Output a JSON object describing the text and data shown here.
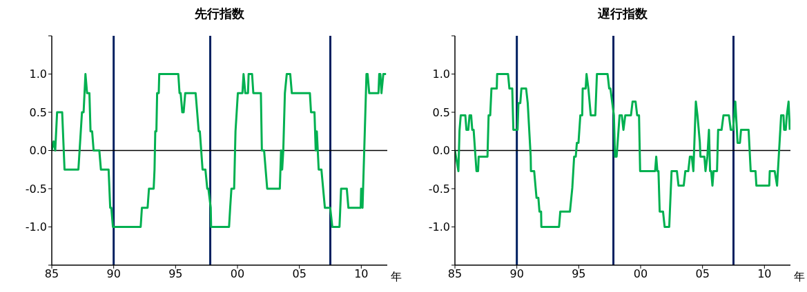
{
  "chart_data": [
    {
      "type": "line",
      "title": "先行指数",
      "xlabel": "年",
      "xlim": [
        1985,
        2012.1
      ],
      "ylim": [
        -1.5,
        1.5
      ],
      "xticks": [
        {
          "value": 1985,
          "label": "85"
        },
        {
          "value": 1990,
          "label": "90"
        },
        {
          "value": 1995,
          "label": "95"
        },
        {
          "value": 2000,
          "label": "00"
        },
        {
          "value": 2005,
          "label": "05"
        },
        {
          "value": 2010,
          "label": "10"
        }
      ],
      "yticks": [
        {
          "value": -1.5,
          "label": null
        },
        {
          "value": -1,
          "label": "-1.0"
        },
        {
          "value": -0.5,
          "label": "-0.5"
        },
        {
          "value": 0,
          "label": "0.0"
        },
        {
          "value": 0.5,
          "label": "0.5"
        },
        {
          "value": 1,
          "label": "1.0"
        },
        {
          "value": 1.5,
          "label": null
        }
      ],
      "marker": "none",
      "line_style": "solid",
      "ref_lines": [
        {
          "axis": "y",
          "value": 0,
          "color": "#000000"
        },
        {
          "axis": "x",
          "value": 1990.0,
          "color": "#002060"
        },
        {
          "axis": "x",
          "value": 1997.8,
          "color": "#002060"
        },
        {
          "axis": "x",
          "value": 2007.5,
          "color": "#002060"
        }
      ],
      "series": [
        {
          "color": "#00b050",
          "x": [
            1985.0,
            1985.15,
            1985.28,
            1985.43,
            1985.84,
            1986.03,
            1987.15,
            1987.44,
            1987.57,
            1987.72,
            1987.85,
            1988.04,
            1988.13,
            1988.26,
            1988.38,
            1988.84,
            1988.97,
            1989.59,
            1989.72,
            1989.81,
            1989.94,
            1992.18,
            1992.28,
            1992.74,
            1992.85,
            1993.23,
            1993.3,
            1993.36,
            1993.45,
            1993.51,
            1993.64,
            1993.68,
            1995.22,
            1995.32,
            1995.41,
            1995.54,
            1995.65,
            1995.78,
            1996.62,
            1996.87,
            1996.96,
            1997.18,
            1997.41,
            1997.56,
            1997.65,
            1997.84,
            1997.87,
            1999.32,
            1999.41,
            1999.51,
            1999.73,
            1999.84,
            2000.03,
            2000.4,
            2000.49,
            2000.63,
            2000.85,
            2000.9,
            2001.18,
            2001.28,
            2001.89,
            2001.97,
            2002.15,
            2002.4,
            2003.42,
            2003.52,
            2003.61,
            2003.7,
            2003.83,
            2003.98,
            2004.26,
            2004.39,
            2005.85,
            2005.94,
            2006.22,
            2006.32,
            2006.41,
            2006.56,
            2006.78,
            2007.06,
            2007.49,
            2007.66,
            2008.24,
            2008.37,
            2008.83,
            2008.96,
            2009.95,
            2009.99,
            2010.1,
            2010.33,
            2010.42,
            2010.51,
            2010.64,
            2011.39,
            2011.45,
            2011.54,
            2011.63,
            2011.78,
            2012.0
          ],
          "values": [
            0,
            0.12,
            0,
            0.5,
            0.5,
            -0.25,
            -0.25,
            0.5,
            0.5,
            1.0,
            0.75,
            0.75,
            0.25,
            0.25,
            0,
            0,
            -0.25,
            -0.25,
            -0.75,
            -0.75,
            -1.0,
            -1.0,
            -0.75,
            -0.75,
            -0.5,
            -0.5,
            -0.25,
            0.25,
            0.25,
            0.75,
            0.75,
            1.0,
            1.0,
            0.75,
            0.75,
            0.5,
            0.5,
            0.75,
            0.75,
            0.25,
            0.25,
            -0.25,
            -0.25,
            -0.5,
            -0.5,
            -0.75,
            -1.0,
            -1.0,
            -0.75,
            -0.5,
            -0.5,
            0.25,
            0.75,
            0.75,
            1.0,
            0.75,
            0.75,
            1.0,
            1.0,
            0.75,
            0.75,
            0,
            0,
            -0.5,
            -0.5,
            0,
            -0.25,
            0,
            0.75,
            1.0,
            1.0,
            0.75,
            0.75,
            0.5,
            0.5,
            0,
            0.25,
            -0.25,
            -0.25,
            -0.75,
            -0.75,
            -1.0,
            -1.0,
            -0.5,
            -0.5,
            -0.75,
            -0.75,
            -0.5,
            -0.75,
            0.5,
            1.0,
            1.0,
            0.75,
            0.75,
            1.0,
            1.0,
            0.75,
            1.0,
            1.0
          ]
        }
      ]
    },
    {
      "type": "line",
      "title": "遅行指数",
      "xlabel": "年",
      "xlim": [
        1985,
        2012.1
      ],
      "ylim": [
        -1.5,
        1.5
      ],
      "xticks": [
        {
          "value": 1985,
          "label": "85"
        },
        {
          "value": 1990,
          "label": "90"
        },
        {
          "value": 1995,
          "label": "95"
        },
        {
          "value": 2000,
          "label": "00"
        },
        {
          "value": 2005,
          "label": "05"
        },
        {
          "value": 2010,
          "label": "10"
        }
      ],
      "yticks": [
        {
          "value": -1.5,
          "label": null
        },
        {
          "value": -1,
          "label": "-1.0"
        },
        {
          "value": -0.5,
          "label": "-0.5"
        },
        {
          "value": 0,
          "label": "0.0"
        },
        {
          "value": 0.5,
          "label": "0.5"
        },
        {
          "value": 1,
          "label": "1.0"
        },
        {
          "value": 1.5,
          "label": null
        }
      ],
      "marker": "none",
      "line_style": "solid",
      "ref_lines": [
        {
          "axis": "y",
          "value": 0,
          "color": "#000000"
        },
        {
          "axis": "x",
          "value": 1990.0,
          "color": "#002060"
        },
        {
          "axis": "x",
          "value": 1997.8,
          "color": "#002060"
        },
        {
          "axis": "x",
          "value": 2007.5,
          "color": "#002060"
        }
      ],
      "series": [
        {
          "color": "#00b050",
          "x": [
            1985.0,
            1985.28,
            1985.37,
            1985.47,
            1985.84,
            1985.93,
            1986.08,
            1986.18,
            1986.31,
            1986.4,
            1986.51,
            1986.74,
            1986.87,
            1986.92,
            1987.63,
            1987.72,
            1987.85,
            1987.95,
            1988.38,
            1988.41,
            1989.29,
            1989.4,
            1989.63,
            1989.72,
            1990.06,
            1990.13,
            1990.28,
            1990.37,
            1990.75,
            1990.88,
            1991.12,
            1991.14,
            1991.4,
            1991.59,
            1991.74,
            1991.83,
            1991.96,
            1991.98,
            1993.41,
            1993.51,
            1994.29,
            1994.48,
            1994.63,
            1994.76,
            1994.85,
            1994.98,
            1995.13,
            1995.28,
            1995.32,
            1995.56,
            1995.63,
            1995.78,
            1995.97,
            1996.34,
            1996.47,
            1997.33,
            1997.46,
            1997.56,
            1997.84,
            1997.93,
            1998.06,
            1998.3,
            1998.48,
            1998.61,
            1998.76,
            1999.22,
            1999.35,
            1999.59,
            1999.72,
            1999.87,
            1999.96,
            2001.17,
            2001.26,
            2001.35,
            2001.44,
            2001.54,
            2001.81,
            2001.94,
            2002.31,
            2002.5,
            2002.93,
            2003.06,
            2003.48,
            2003.61,
            2003.85,
            2003.98,
            2004.13,
            2004.26,
            2004.46,
            2004.59,
            2004.78,
            2004.83,
            2005.15,
            2005.24,
            2005.39,
            2005.52,
            2005.61,
            2005.7,
            2005.8,
            2005.89,
            2006.17,
            2006.26,
            2006.54,
            2006.69,
            2007.13,
            2007.28,
            2007.46,
            2007.65,
            2007.83,
            2008.02,
            2008.11,
            2008.72,
            2008.89,
            2009.28,
            2009.35,
            2010.39,
            2010.43,
            2010.83,
            2011.02,
            2011.35,
            2011.54,
            2011.59,
            2011.72,
            2011.81,
            2011.95,
            2012.05
          ],
          "values": [
            0,
            -0.27,
            0.26,
            0.46,
            0.46,
            0.27,
            0.27,
            0.46,
            0.46,
            0.27,
            0.27,
            -0.27,
            -0.27,
            -0.08,
            -0.08,
            0.46,
            0.46,
            0.81,
            0.81,
            1.0,
            1.0,
            0.81,
            0.81,
            0.27,
            0.27,
            0.62,
            0.62,
            0.81,
            0.81,
            0.62,
            -0.08,
            -0.27,
            -0.27,
            -0.62,
            -0.62,
            -0.8,
            -0.8,
            -1.0,
            -1.0,
            -0.8,
            -0.8,
            -0.49,
            -0.08,
            -0.08,
            0.1,
            0.1,
            0.46,
            0.46,
            0.81,
            0.81,
            1.0,
            0.81,
            0.46,
            0.46,
            1.0,
            1.0,
            0.81,
            0.81,
            0.46,
            -0.08,
            -0.08,
            0.46,
            0.46,
            0.27,
            0.46,
            0.46,
            0.64,
            0.64,
            0.46,
            0.46,
            -0.27,
            -0.27,
            -0.08,
            -0.27,
            -0.27,
            -0.8,
            -0.8,
            -1.0,
            -1.0,
            -0.27,
            -0.27,
            -0.46,
            -0.46,
            -0.27,
            -0.27,
            -0.08,
            -0.08,
            -0.27,
            0.64,
            0.46,
            0.11,
            -0.08,
            -0.08,
            -0.27,
            -0.08,
            0.27,
            -0.27,
            -0.27,
            -0.46,
            -0.27,
            -0.27,
            0.27,
            0.27,
            0.46,
            0.46,
            0.27,
            0.27,
            0.64,
            0.1,
            0.1,
            0.27,
            0.27,
            -0.27,
            -0.27,
            -0.46,
            -0.46,
            -0.27,
            -0.27,
            -0.46,
            0.46,
            0.46,
            0.27,
            0.27,
            0.46,
            0.64,
            0.27
          ]
        }
      ]
    }
  ]
}
